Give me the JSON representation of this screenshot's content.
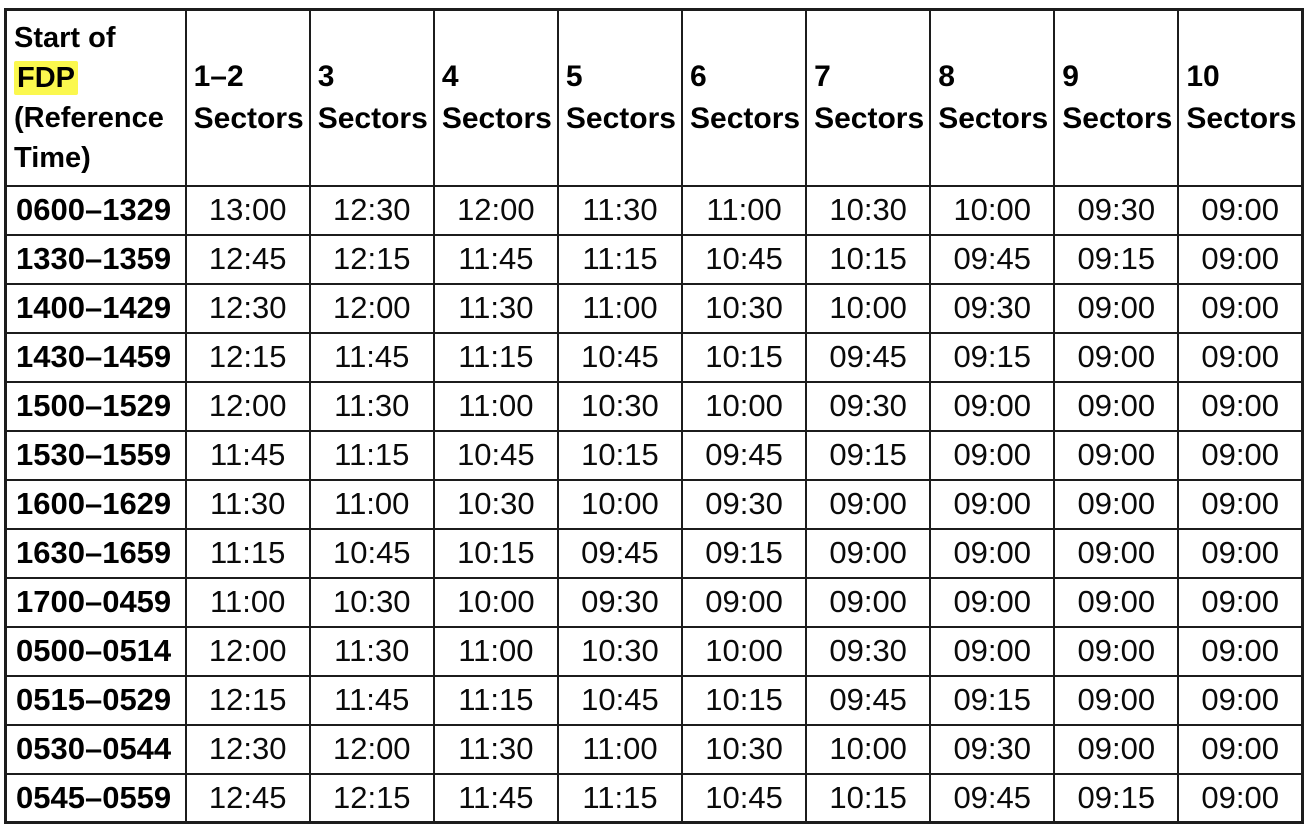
{
  "table": {
    "header": {
      "row_header": {
        "prefix": "Start of",
        "highlight": "FDP",
        "suffix": "(Reference Time)"
      },
      "columns": [
        "1–2 Sectors",
        "3 Sectors",
        "4 Sectors",
        "5 Sectors",
        "6 Sectors",
        "7 Sectors",
        "8 Sectors",
        "9 Sectors",
        "10 Sectors"
      ]
    },
    "rows": [
      {
        "label": "0600–1329",
        "values": [
          "13:00",
          "12:30",
          "12:00",
          "11:30",
          "11:00",
          "10:30",
          "10:00",
          "09:30",
          "09:00"
        ]
      },
      {
        "label": "1330–1359",
        "values": [
          "12:45",
          "12:15",
          "11:45",
          "11:15",
          "10:45",
          "10:15",
          "09:45",
          "09:15",
          "09:00"
        ]
      },
      {
        "label": "1400–1429",
        "values": [
          "12:30",
          "12:00",
          "11:30",
          "11:00",
          "10:30",
          "10:00",
          "09:30",
          "09:00",
          "09:00"
        ]
      },
      {
        "label": "1430–1459",
        "values": [
          "12:15",
          "11:45",
          "11:15",
          "10:45",
          "10:15",
          "09:45",
          "09:15",
          "09:00",
          "09:00"
        ]
      },
      {
        "label": "1500–1529",
        "values": [
          "12:00",
          "11:30",
          "11:00",
          "10:30",
          "10:00",
          "09:30",
          "09:00",
          "09:00",
          "09:00"
        ]
      },
      {
        "label": "1530–1559",
        "values": [
          "11:45",
          "11:15",
          "10:45",
          "10:15",
          "09:45",
          "09:15",
          "09:00",
          "09:00",
          "09:00"
        ]
      },
      {
        "label": "1600–1629",
        "values": [
          "11:30",
          "11:00",
          "10:30",
          "10:00",
          "09:30",
          "09:00",
          "09:00",
          "09:00",
          "09:00"
        ]
      },
      {
        "label": "1630–1659",
        "values": [
          "11:15",
          "10:45",
          "10:15",
          "09:45",
          "09:15",
          "09:00",
          "09:00",
          "09:00",
          "09:00"
        ]
      },
      {
        "label": "1700–0459",
        "values": [
          "11:00",
          "10:30",
          "10:00",
          "09:30",
          "09:00",
          "09:00",
          "09:00",
          "09:00",
          "09:00"
        ]
      },
      {
        "label": "0500–0514",
        "values": [
          "12:00",
          "11:30",
          "11:00",
          "10:30",
          "10:00",
          "09:30",
          "09:00",
          "09:00",
          "09:00"
        ]
      },
      {
        "label": "0515–0529",
        "values": [
          "12:15",
          "11:45",
          "11:15",
          "10:45",
          "10:15",
          "09:45",
          "09:15",
          "09:00",
          "09:00"
        ]
      },
      {
        "label": "0530–0544",
        "values": [
          "12:30",
          "12:00",
          "11:30",
          "11:00",
          "10:30",
          "10:00",
          "09:30",
          "09:00",
          "09:00"
        ]
      },
      {
        "label": "0545–0559",
        "values": [
          "12:45",
          "12:15",
          "11:45",
          "11:15",
          "10:45",
          "10:15",
          "09:45",
          "09:15",
          "09:00"
        ]
      }
    ]
  },
  "colors": {
    "highlight": "#fbf84e",
    "border": "#1c1c1c",
    "text": "#000000",
    "background": "#ffffff"
  }
}
